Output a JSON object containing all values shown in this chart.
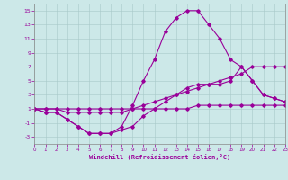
{
  "xlabel": "Windchill (Refroidissement éolien,°C)",
  "background_color": "#cce8e8",
  "line_color": "#990099",
  "x_hours": [
    0,
    1,
    2,
    3,
    4,
    5,
    6,
    7,
    8,
    9,
    10,
    11,
    12,
    13,
    14,
    15,
    16,
    17,
    18,
    19,
    20,
    21,
    22,
    23
  ],
  "series": {
    "temp": [
      1,
      0.5,
      0.5,
      -0.5,
      -1.5,
      -2.5,
      -2.5,
      -2.5,
      -1.5,
      1.5,
      5,
      8,
      12,
      14,
      15,
      15,
      13,
      11,
      8,
      7,
      5,
      3,
      2.5,
      2
    ],
    "windchill": [
      1,
      0.5,
      0.5,
      -0.5,
      -1.5,
      -2.5,
      -2.5,
      -2.5,
      -2,
      -1.5,
      0,
      1,
      2,
      3,
      4,
      4.5,
      4.5,
      4.5,
      5,
      7,
      5,
      3,
      2.5,
      2
    ],
    "line3": [
      1,
      1,
      1,
      0.5,
      0.5,
      0.5,
      0.5,
      0.5,
      0.5,
      1,
      1.5,
      2,
      2.5,
      3,
      3.5,
      4,
      4.5,
      5,
      5.5,
      6,
      7,
      7,
      7,
      7
    ],
    "line4": [
      1,
      1,
      1,
      1,
      1,
      1,
      1,
      1,
      1,
      1,
      1,
      1,
      1,
      1,
      1,
      1.5,
      1.5,
      1.5,
      1.5,
      1.5,
      1.5,
      1.5,
      1.5,
      1.5
    ]
  },
  "ylim": [
    -4,
    16
  ],
  "yticks": [
    -3,
    -1,
    1,
    3,
    5,
    7,
    9,
    11,
    13,
    15
  ],
  "xlim": [
    0,
    23
  ],
  "xticks": [
    0,
    1,
    2,
    3,
    4,
    5,
    6,
    7,
    8,
    9,
    10,
    11,
    12,
    13,
    14,
    15,
    16,
    17,
    18,
    19,
    20,
    21,
    22,
    23
  ]
}
